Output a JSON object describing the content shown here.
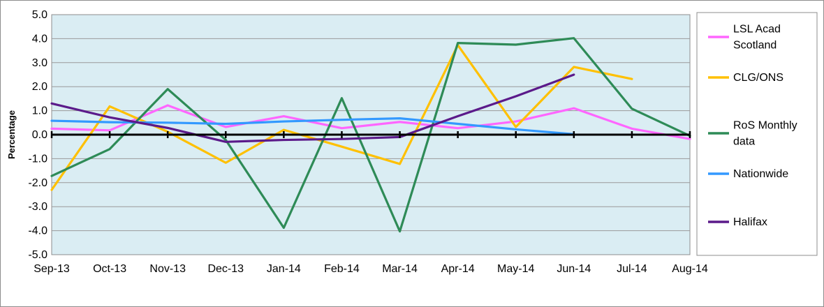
{
  "chart_data": {
    "type": "line",
    "ylabel": "Percentage",
    "xlabel": "",
    "ylim": [
      -5.0,
      5.0
    ],
    "ystep": 1.0,
    "y_ticks": [
      "5.0",
      "4.0",
      "3.0",
      "2.0",
      "1.0",
      "0.0",
      "-1.0",
      "-2.0",
      "-3.0",
      "-4.0",
      "-5.0"
    ],
    "categories": [
      "Sep-13",
      "Oct-13",
      "Nov-13",
      "Dec-13",
      "Jan-14",
      "Feb-14",
      "Mar-14",
      "Apr-14",
      "May-14",
      "Jun-14",
      "Jul-14",
      "Aug-14"
    ],
    "plot_background": "#daedf3",
    "grid": true,
    "legend_position": "right",
    "series": [
      {
        "name": "LSL Acad Scotland",
        "name_lines": [
          "LSL Acad",
          "Scotland"
        ],
        "color": "#ff66ff",
        "values": [
          0.25,
          0.18,
          1.22,
          0.32,
          0.77,
          0.27,
          0.53,
          0.27,
          0.55,
          1.1,
          0.25,
          -0.18
        ]
      },
      {
        "name": "CLG/ONS",
        "name_lines": [
          "CLG/ONS"
        ],
        "color": "#ffc000",
        "values": [
          -2.3,
          1.18,
          0.12,
          -1.17,
          0.2,
          -0.5,
          -1.22,
          3.73,
          0.32,
          2.82,
          2.32,
          null
        ]
      },
      {
        "name": "RoS Monthly data",
        "name_lines": [
          "RoS Monthly",
          "data"
        ],
        "color": "#2e8b57",
        "values": [
          -1.72,
          -0.6,
          1.9,
          -0.22,
          -3.88,
          1.52,
          -4.03,
          3.82,
          3.75,
          4.02,
          1.08,
          -0.05
        ]
      },
      {
        "name": "Nationwide",
        "name_lines": [
          "Nationwide"
        ],
        "color": "#3399ff",
        "values": [
          0.58,
          0.52,
          0.5,
          0.45,
          0.55,
          0.62,
          0.68,
          0.45,
          0.22,
          0.02,
          null,
          null
        ]
      },
      {
        "name": "Halifax",
        "name_lines": [
          "Halifax"
        ],
        "color": "#5b1a8a",
        "values": [
          1.3,
          0.72,
          0.28,
          -0.3,
          -0.22,
          -0.18,
          -0.1,
          0.77,
          1.6,
          2.5,
          null,
          null
        ]
      }
    ]
  }
}
